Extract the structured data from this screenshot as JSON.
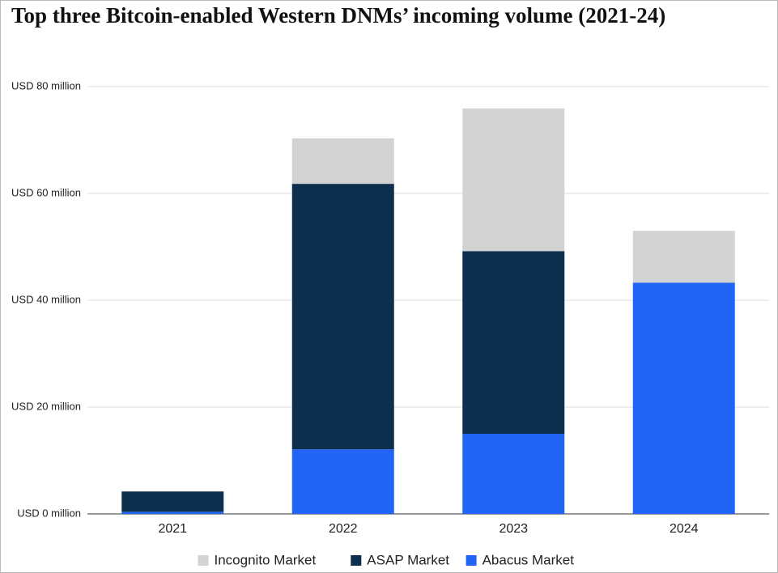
{
  "chart_data": {
    "type": "stacked_bar",
    "title": "Top three Bitcoin-enabled Western DNMs’ incoming volume (2021-24)",
    "categories": [
      "2021",
      "2022",
      "2023",
      "2024"
    ],
    "series": [
      {
        "name": "Incognito Market",
        "color": "#d3d3d3",
        "values": [
          0,
          8.5,
          26.7,
          9.7
        ]
      },
      {
        "name": "ASAP Market",
        "color": "#0d2f4d",
        "values": [
          3.8,
          49.7,
          34.2,
          0
        ]
      },
      {
        "name": "Abacus Market",
        "color": "#2165f6",
        "values": [
          0.4,
          12.1,
          15.0,
          43.3
        ]
      }
    ],
    "ylim": [
      0,
      80
    ],
    "yticks": [
      {
        "value": 0,
        "label": "USD 0 million"
      },
      {
        "value": 20,
        "label": "USD 20 million"
      },
      {
        "value": 40,
        "label": "USD 40 million"
      },
      {
        "value": 60,
        "label": "USD 60 million"
      },
      {
        "value": 80,
        "label": "USD 80 million"
      }
    ],
    "grid": true,
    "legend": "bottom"
  }
}
